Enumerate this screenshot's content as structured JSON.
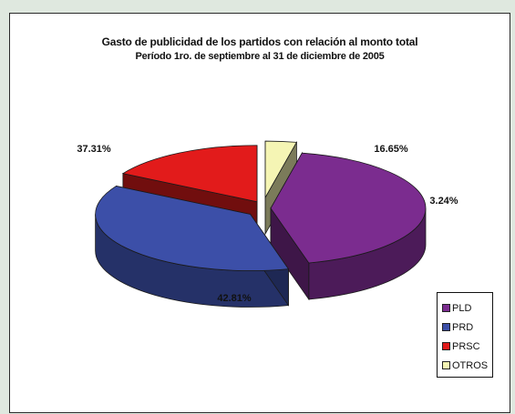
{
  "chart_data": {
    "type": "pie",
    "title": "Gasto de  publicidad de los partidos con relación al monto total",
    "subtitle": "Período 1ro. de septiembre al  31 de diciembre de  2005",
    "style": "3d-exploded",
    "legend_position": "bottom-right",
    "slices": [
      {
        "name": "PLD",
        "value": 42.81,
        "label": "42.81%",
        "color": "#7b2c8f"
      },
      {
        "name": "PRD",
        "value": 37.31,
        "label": "37.31%",
        "color": "#3c4fa8"
      },
      {
        "name": "PRSC",
        "value": 16.65,
        "label": "16.65%",
        "color": "#e21b1b"
      },
      {
        "name": "OTROS",
        "value": 3.24,
        "label": "3.24%",
        "color": "#f5f5b4"
      }
    ]
  }
}
